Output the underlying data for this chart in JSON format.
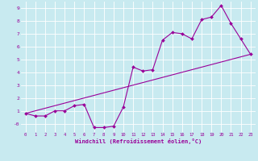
{
  "title": "",
  "xlabel": "Windchill (Refroidissement éolien,°C)",
  "ylabel": "",
  "bg_color": "#c8eaf0",
  "line_color": "#990099",
  "xlim": [
    -0.5,
    23.5
  ],
  "ylim": [
    -0.65,
    9.5
  ],
  "xticks": [
    0,
    1,
    2,
    3,
    4,
    5,
    6,
    7,
    8,
    9,
    10,
    11,
    12,
    13,
    14,
    15,
    16,
    17,
    18,
    19,
    20,
    21,
    22,
    23
  ],
  "yticks": [
    0,
    1,
    2,
    3,
    4,
    5,
    6,
    7,
    8,
    9
  ],
  "ytick_labels": [
    "-0",
    "1",
    "2",
    "3",
    "4",
    "5",
    "6",
    "7",
    "8",
    "9"
  ],
  "curve_x": [
    0,
    1,
    2,
    3,
    4,
    5,
    6,
    7,
    8,
    9,
    10,
    11,
    12,
    13,
    14,
    15,
    16,
    17,
    18,
    19,
    20,
    21,
    22,
    23
  ],
  "curve_y": [
    0.8,
    0.6,
    0.6,
    1.0,
    1.0,
    1.4,
    1.5,
    -0.3,
    -0.3,
    -0.2,
    1.3,
    4.4,
    4.1,
    4.2,
    6.5,
    7.1,
    7.0,
    6.6,
    8.1,
    8.3,
    9.2,
    7.8,
    6.6,
    5.4
  ],
  "ref_line_x": [
    0,
    23
  ],
  "ref_line_y": [
    0.8,
    5.4
  ],
  "grid_color": "#ffffff",
  "tick_fontsize": 4.0,
  "xlabel_fontsize": 5.0
}
